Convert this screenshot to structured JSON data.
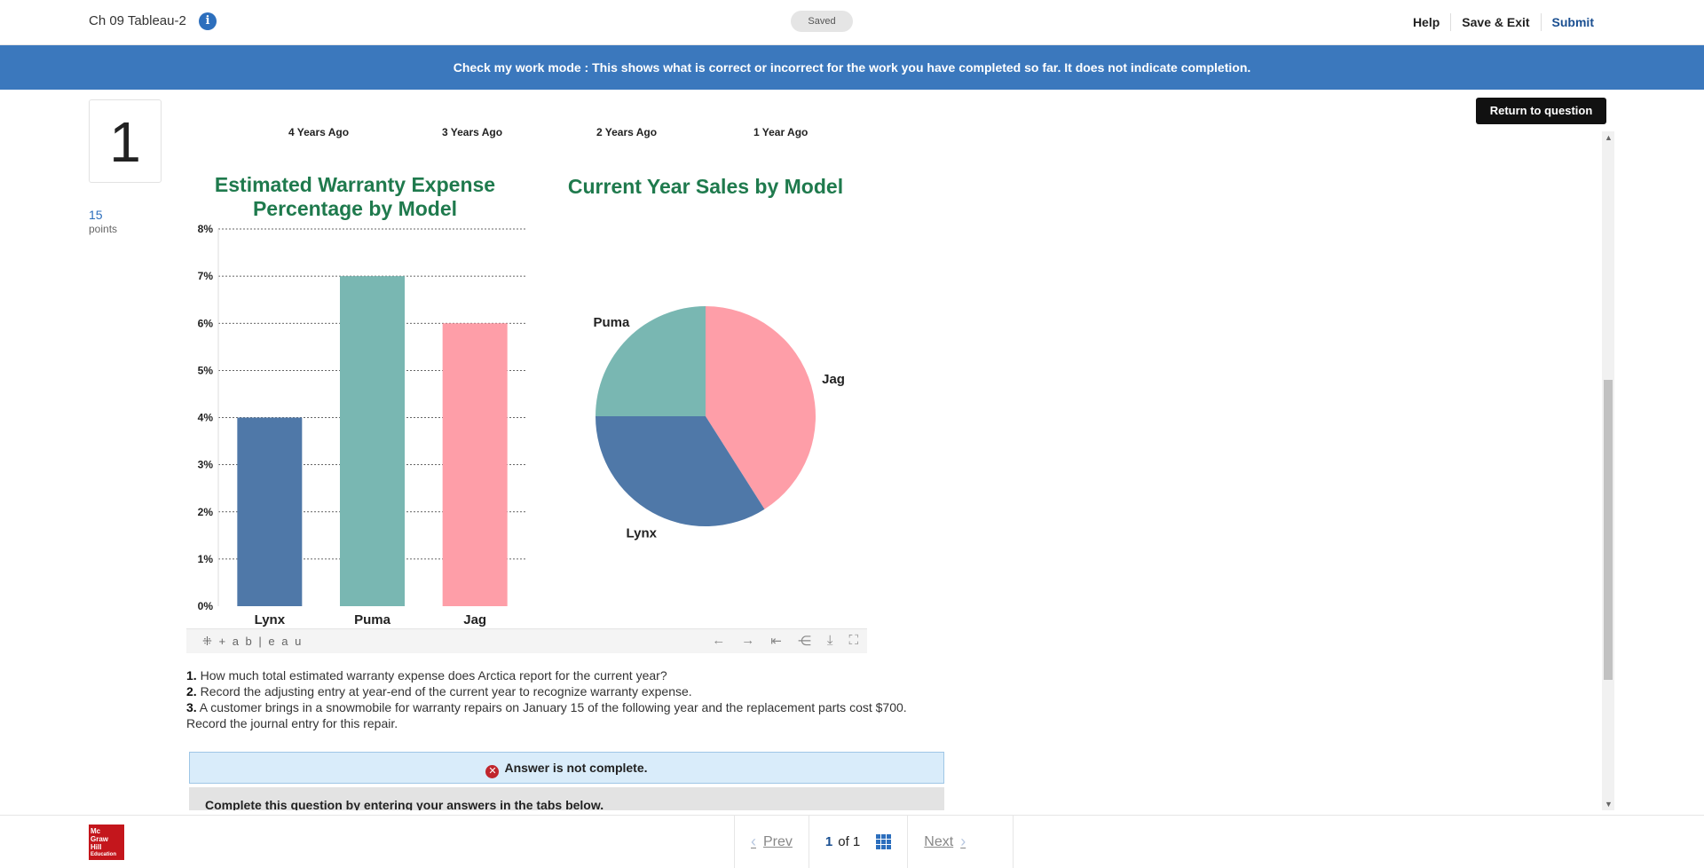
{
  "header": {
    "title": "Ch 09 Tableau-2",
    "saved": "Saved",
    "help": "Help",
    "save_exit": "Save & Exit",
    "submit": "Submit"
  },
  "banner": "Check my work mode : This shows what is correct or incorrect for the work you have completed so far. It does not indicate completion.",
  "question": {
    "number": "1",
    "points_value": "15",
    "points_label": "points",
    "return_label": "Return to question"
  },
  "years": [
    "4 Years Ago",
    "3 Years Ago",
    "2 Years Ago",
    "1 Year Ago"
  ],
  "chart_data": [
    {
      "type": "bar",
      "title": "Estimated Warranty Expense Percentage by Model",
      "categories": [
        "Lynx",
        "Puma",
        "Jag"
      ],
      "values": [
        4,
        7,
        6
      ],
      "colors": [
        "#4f78a8",
        "#79b7b2",
        "#fe9ea8"
      ],
      "yticks": [
        "0%",
        "1%",
        "2%",
        "3%",
        "4%",
        "5%",
        "6%",
        "7%",
        "8%"
      ],
      "ylim": [
        0,
        8
      ],
      "grid": true
    },
    {
      "type": "pie",
      "title": "Current Year Sales by Model",
      "labels": [
        "Jag",
        "Lynx",
        "Puma"
      ],
      "values": [
        41,
        34,
        25
      ],
      "colors": [
        "#fe9ea8",
        "#4f78a8",
        "#79b7b2"
      ]
    }
  ],
  "tableau_logo": "+ a b | e a u",
  "questions": [
    {
      "num": "1.",
      "text": " How much total estimated warranty expense does Arctica report for the current year?"
    },
    {
      "num": "2.",
      "text": " Record the adjusting entry at year-end of the current year to recognize warranty expense."
    },
    {
      "num": "3.",
      "text": " A customer brings in a snowmobile for warranty repairs on January 15 of the following year and the replacement parts cost $700."
    }
  ],
  "question_tail": "Record the journal entry for this repair.",
  "answer_status": "Answer is not complete.",
  "complete_instruction": "Complete this question by entering your answers in the tabs below.",
  "footer": {
    "logo_lines": [
      "Mc",
      "Graw",
      "Hill",
      "Education"
    ],
    "prev": "Prev",
    "current": "1",
    "of": "of 1",
    "next": "Next"
  }
}
